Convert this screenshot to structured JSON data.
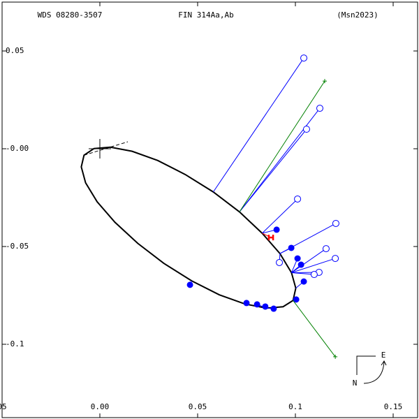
{
  "chart_data": {
    "type": "scatter",
    "title_left": "WDS 08280-3507",
    "title": "FIN 314Aa,Ab",
    "title_right": "(Msn2023)",
    "compass": {
      "east": "E",
      "north": "N"
    },
    "xlim": [
      -0.05,
      0.1625
    ],
    "ylim": [
      -0.1375,
      0.075
    ],
    "xticks": [
      {
        "value": -0.05,
        "label": "05"
      },
      {
        "value": 0,
        "label": "0.00"
      },
      0.05,
      0.1,
      0.15
    ],
    "yticks": [
      0.05,
      {
        "value": 0,
        "label": "-0.00"
      },
      -0.05,
      -0.1
    ],
    "grid": false,
    "orbit_color": "#000000",
    "orbit_x": [
      0.0988,
      0.0937,
      0.0853,
      0.0742,
      0.0611,
      0.047,
      0.0327,
      0.0194,
      0.0077,
      -0.0014,
      -0.0073,
      -0.0095,
      -0.0081,
      -0.003,
      0.0054,
      0.0165,
      0.0296,
      0.0437,
      0.058,
      0.0714,
      0.083,
      0.0921,
      0.098,
      0.1002
    ],
    "orbit_y": [
      -0.0776,
      -0.0808,
      -0.0815,
      -0.0794,
      -0.0747,
      -0.0676,
      -0.0586,
      -0.0484,
      -0.0376,
      -0.0271,
      -0.0174,
      -0.0093,
      -0.0033,
      0.0001,
      0.0008,
      -0.0013,
      -0.006,
      -0.0132,
      -0.0221,
      -0.0323,
      -0.0432,
      -0.0536,
      -0.0634,
      -0.0713
    ],
    "series": [
      {
        "color": "#0000ff",
        "marker": "filled",
        "x": [
          0.0904,
          0.0979,
          0.1011,
          0.1029,
          0.1043,
          0.1004,
          0.0889,
          0.0846,
          0.0804,
          0.075,
          0.0461
        ],
        "y": [
          -0.0414,
          -0.0507,
          -0.0561,
          -0.0593,
          -0.0679,
          -0.0771,
          -0.0818,
          -0.0807,
          -0.0796,
          -0.0789,
          -0.0696
        ]
      },
      {
        "color": "#0000ff",
        "marker": "open",
        "x": [
          0.1043,
          0.1125,
          0.1057,
          0.1011,
          0.1207,
          0.1157,
          0.1204,
          0.1121,
          0.1096,
          0.0918
        ],
        "y": [
          0.0464,
          0.0207,
          0.01,
          -0.0257,
          -0.0382,
          -0.0511,
          -0.0561,
          -0.0632,
          -0.0643,
          -0.0582
        ]
      },
      {
        "color": "#ff0000",
        "marker": "errorbar",
        "x": [
          0.0875
        ],
        "y": [
          -0.0454
        ],
        "xerr": [
          0.0011
        ]
      },
      {
        "color": "#008000",
        "marker": "plus",
        "x": [
          0.115,
          0.1204
        ],
        "y": [
          0.0346,
          -0.1064
        ]
      }
    ]
  }
}
